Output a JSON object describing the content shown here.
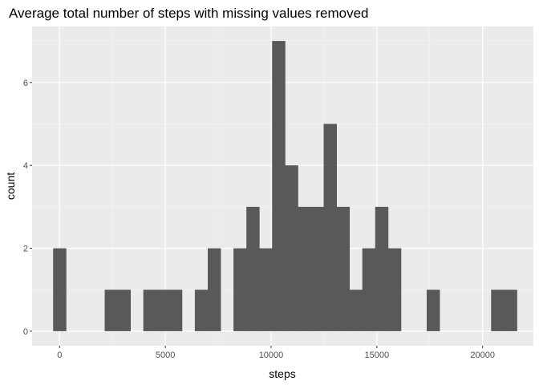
{
  "chart_data": {
    "type": "bar",
    "title": "Average total number of steps with missing values removed",
    "xlabel": "steps",
    "ylabel": "count",
    "xlim": [
      -1300,
      22400
    ],
    "ylim": [
      -0.35,
      7.35
    ],
    "x_ticks": [
      0,
      5000,
      10000,
      15000,
      20000
    ],
    "x_tick_labels": [
      "0",
      "5000",
      "10000",
      "15000",
      "20000"
    ],
    "y_ticks": [
      0,
      2,
      4,
      6
    ],
    "y_tick_labels": [
      "0",
      "2",
      "4",
      "6"
    ],
    "grid": true,
    "legend": "none",
    "bin_width": 609,
    "bins": [
      {
        "x0": -305,
        "x1": 305,
        "count": 2
      },
      {
        "x0": 305,
        "x1": 914,
        "count": 0
      },
      {
        "x0": 914,
        "x1": 1523,
        "count": 0
      },
      {
        "x0": 1523,
        "x1": 2132,
        "count": 0
      },
      {
        "x0": 2132,
        "x1": 2741,
        "count": 1
      },
      {
        "x0": 2741,
        "x1": 3350,
        "count": 1
      },
      {
        "x0": 3350,
        "x1": 3959,
        "count": 0
      },
      {
        "x0": 3959,
        "x1": 4568,
        "count": 1
      },
      {
        "x0": 4568,
        "x1": 5177,
        "count": 1
      },
      {
        "x0": 5177,
        "x1": 5786,
        "count": 1
      },
      {
        "x0": 5786,
        "x1": 6395,
        "count": 0
      },
      {
        "x0": 6395,
        "x1": 7004,
        "count": 1
      },
      {
        "x0": 7004,
        "x1": 7613,
        "count": 2
      },
      {
        "x0": 7613,
        "x1": 8222,
        "count": 0
      },
      {
        "x0": 8222,
        "x1": 8831,
        "count": 2
      },
      {
        "x0": 8831,
        "x1": 9440,
        "count": 3
      },
      {
        "x0": 9440,
        "x1": 10049,
        "count": 2
      },
      {
        "x0": 10049,
        "x1": 10658,
        "count": 7
      },
      {
        "x0": 10658,
        "x1": 11267,
        "count": 4
      },
      {
        "x0": 11267,
        "x1": 11876,
        "count": 3
      },
      {
        "x0": 11876,
        "x1": 12485,
        "count": 3
      },
      {
        "x0": 12485,
        "x1": 13094,
        "count": 5
      },
      {
        "x0": 13094,
        "x1": 13703,
        "count": 3
      },
      {
        "x0": 13703,
        "x1": 14312,
        "count": 1
      },
      {
        "x0": 14312,
        "x1": 14921,
        "count": 2
      },
      {
        "x0": 14921,
        "x1": 15530,
        "count": 3
      },
      {
        "x0": 15530,
        "x1": 16139,
        "count": 2
      },
      {
        "x0": 16139,
        "x1": 16748,
        "count": 0
      },
      {
        "x0": 16748,
        "x1": 17357,
        "count": 0
      },
      {
        "x0": 17357,
        "x1": 17966,
        "count": 1
      },
      {
        "x0": 17966,
        "x1": 18575,
        "count": 0
      },
      {
        "x0": 18575,
        "x1": 19184,
        "count": 0
      },
      {
        "x0": 19184,
        "x1": 19793,
        "count": 0
      },
      {
        "x0": 19793,
        "x1": 20402,
        "count": 0
      },
      {
        "x0": 20402,
        "x1": 21011,
        "count": 1
      },
      {
        "x0": 21011,
        "x1": 21620,
        "count": 1
      }
    ]
  },
  "colors": {
    "bar_fill": "#595959",
    "panel_background": "#ebebeb",
    "grid_major": "#ffffff",
    "grid_minor": "#f5f5f5",
    "tick_text": "#4d4d4d",
    "tick_mark": "#333333"
  }
}
